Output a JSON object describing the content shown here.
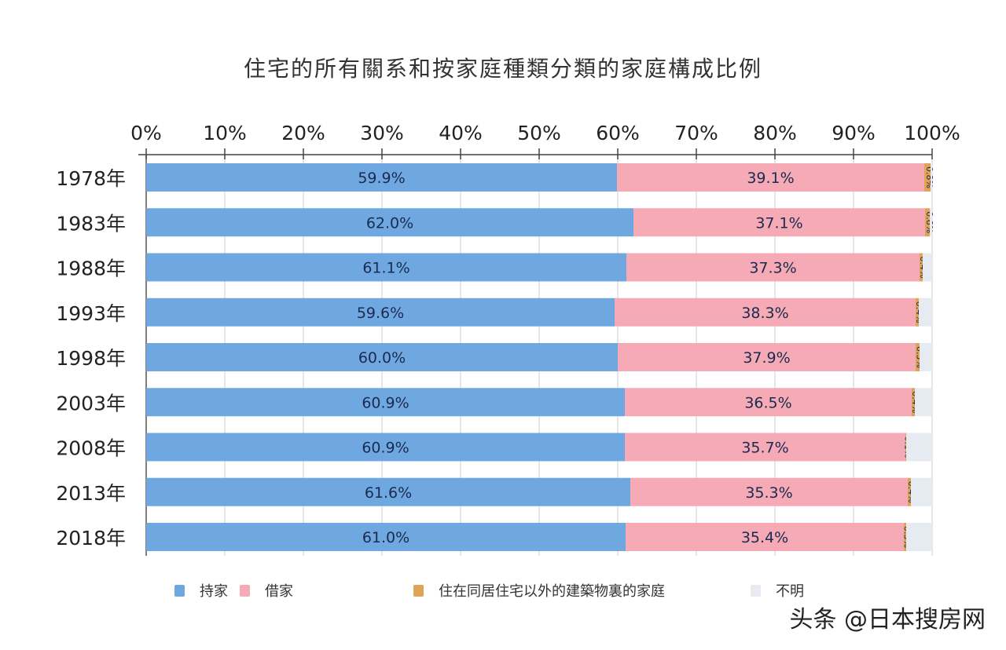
{
  "chart_data": {
    "type": "bar",
    "orientation": "horizontal",
    "stacked": true,
    "title": "住宅的所有關系和按家庭種類分類的家庭構成比例",
    "xlabel": "",
    "ylabel": "",
    "xlim": [
      0,
      100
    ],
    "x_ticks": [
      "0%",
      "10%",
      "20%",
      "30%",
      "40%",
      "50%",
      "60%",
      "70%",
      "80%",
      "90%",
      "100%"
    ],
    "categories": [
      "1978年",
      "1983年",
      "1988年",
      "1993年",
      "1998年",
      "2003年",
      "2008年",
      "2013年",
      "2018年"
    ],
    "series": [
      {
        "name": "持家",
        "color": "#6fa8e0",
        "values": [
          59.9,
          62.0,
          61.1,
          59.6,
          60.0,
          60.9,
          60.9,
          61.6,
          61.0
        ],
        "labels": [
          "59.9%",
          "62.0%",
          "61.1%",
          "59.6%",
          "60.0%",
          "60.9%",
          "60.9%",
          "61.6%",
          "61.0%"
        ]
      },
      {
        "name": "借家",
        "color": "#f5aab5",
        "values": [
          39.1,
          37.1,
          37.3,
          38.3,
          37.9,
          36.5,
          35.7,
          35.3,
          35.4
        ],
        "labels": [
          "39.1%",
          "37.1%",
          "37.3%",
          "38.3%",
          "37.9%",
          "36.5%",
          "35.7%",
          "35.3%",
          "35.4%"
        ]
      },
      {
        "name": "住在同居住宅以外的建築物裏的家庭",
        "color": "#e0a458",
        "values": [
          0.8,
          0.6,
          0.4,
          0.4,
          0.5,
          0.4,
          0.1,
          0.4,
          0.3
        ],
        "labels": [
          "0.8%",
          "0.6%",
          "0.4%",
          "0.4%",
          "0.5%",
          "0.4%",
          "0.1%",
          "0.4%",
          "0.3%"
        ]
      },
      {
        "name": "不明",
        "color": "#e6ebf1",
        "values": [
          0.2,
          0.3,
          1.2,
          1.7,
          1.6,
          2.2,
          3.3,
          2.7,
          3.3
        ]
      }
    ],
    "grid": true,
    "legend_position": "bottom"
  },
  "watermark": "头条 @日本搜房网"
}
